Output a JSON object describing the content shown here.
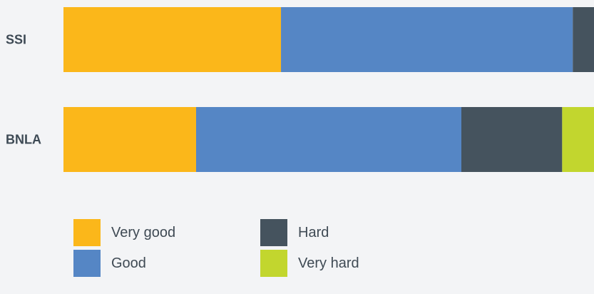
{
  "chart_data": {
    "type": "bar",
    "orientation": "horizontal",
    "stacked": true,
    "categories": [
      "SSI",
      "BNLA"
    ],
    "series": [
      {
        "name": "Very good",
        "values": [
          41,
          25
        ],
        "color": "#fbb71a"
      },
      {
        "name": "Good",
        "values": [
          55,
          50
        ],
        "color": "#5586c5"
      },
      {
        "name": "Hard",
        "values": [
          4,
          19
        ],
        "color": "#45535e"
      },
      {
        "name": "Very hard",
        "values": [
          0,
          6
        ],
        "color": "#c2d62e"
      }
    ],
    "legend": {
      "placement": "bottom",
      "columns": 2
    },
    "grid": false
  }
}
